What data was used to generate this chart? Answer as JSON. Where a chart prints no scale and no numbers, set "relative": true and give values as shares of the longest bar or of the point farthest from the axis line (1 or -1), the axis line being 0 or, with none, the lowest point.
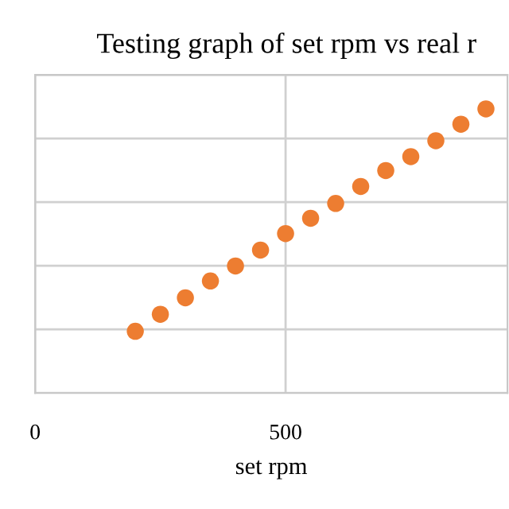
{
  "chart_data": {
    "type": "scatter",
    "title": "Testing graph of set rpm vs real r",
    "xlabel": "set rpm",
    "x": [
      200,
      250,
      300,
      350,
      400,
      450,
      500,
      550,
      600,
      650,
      700,
      750,
      800,
      850,
      900
    ],
    "values": [
      0.217,
      0.277,
      0.335,
      0.394,
      0.447,
      0.503,
      0.561,
      0.615,
      0.667,
      0.727,
      0.783,
      0.832,
      0.888,
      0.946,
      1
    ],
    "relative": true,
    "color": "#ed7d31",
    "marker": "circle",
    "xlim": [
      0,
      943
    ],
    "xticks": [
      0,
      500
    ],
    "grid": true,
    "legend": false
  }
}
